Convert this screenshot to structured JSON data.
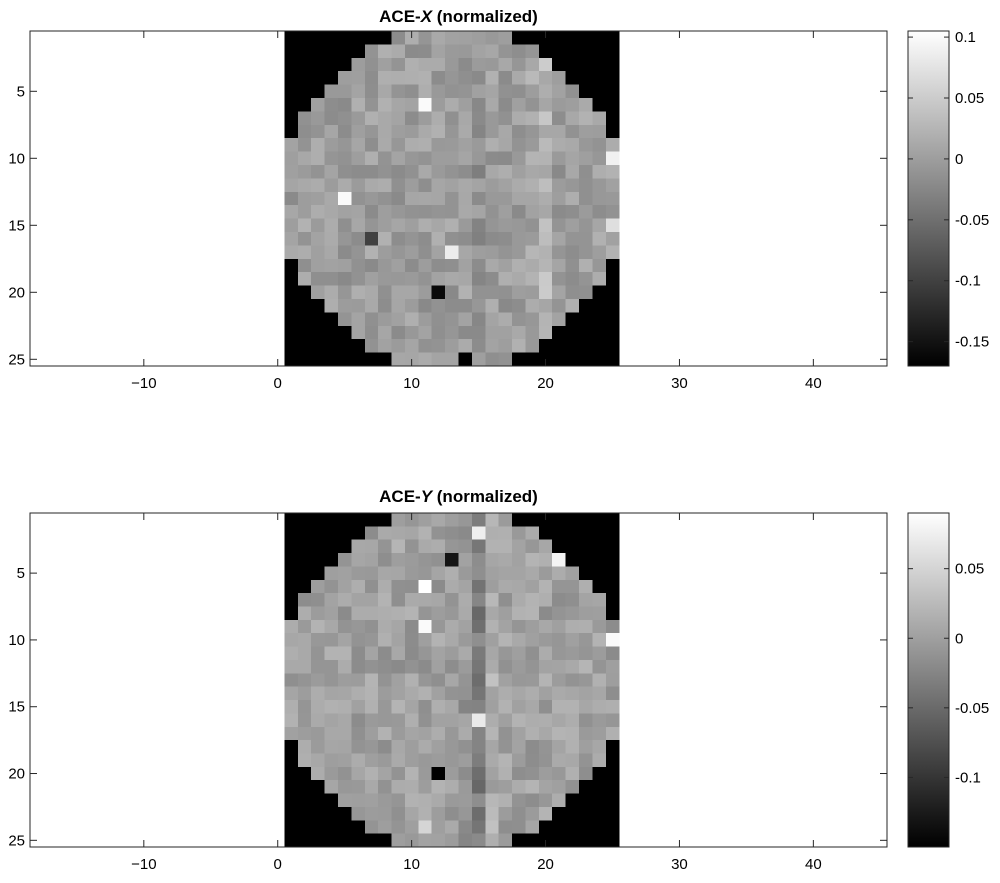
{
  "chart_data": [
    {
      "type": "heatmap",
      "title_parts": {
        "prefix": "ACE-",
        "variable": "X",
        "suffix": " (normalized)"
      },
      "colormap": "gray",
      "xlim": [
        -18.5,
        45.5
      ],
      "ylim": [
        0.5,
        25.5
      ],
      "y_reversed": true,
      "xticks": [
        -10,
        0,
        10,
        20,
        30,
        40
      ],
      "xtick_labels": [
        "−10",
        "0",
        "10",
        "20",
        "30",
        "40"
      ],
      "yticks": [
        5,
        10,
        15,
        20,
        25
      ],
      "ytick_labels": [
        "5",
        "10",
        "15",
        "20",
        "25"
      ],
      "clim": [
        -0.17,
        0.105
      ],
      "colorbar_ticks": [
        0.1,
        0.05,
        0,
        -0.05,
        -0.1,
        -0.15
      ],
      "colorbar_tick_labels": [
        "0.1",
        "0.05",
        "0",
        "-0.05",
        "-0.1",
        "-0.15"
      ],
      "grid_size": [
        25,
        25
      ],
      "background_value": -0.17,
      "base_value": 0.0,
      "noise_amplitude": 0.022,
      "column_offsets": {
        "20": 0.03,
        "19": 0.008,
        "15": -0.012
      },
      "highlights": [
        {
          "x": 11,
          "y": 6,
          "value": 0.1
        },
        {
          "x": 5,
          "y": 13,
          "value": 0.1
        },
        {
          "x": 13,
          "y": 17,
          "value": 0.085
        },
        {
          "x": 25,
          "y": 10,
          "value": 0.09
        },
        {
          "x": 25,
          "y": 15,
          "value": 0.07
        },
        {
          "x": 7,
          "y": 16,
          "value": -0.1
        },
        {
          "x": 12,
          "y": 20,
          "value": -0.16
        },
        {
          "x": 14,
          "y": 25,
          "value": -0.17
        }
      ],
      "seed": 1729
    },
    {
      "type": "heatmap",
      "title_parts": {
        "prefix": "ACE-",
        "variable": "Y",
        "suffix": " (normalized)"
      },
      "colormap": "gray",
      "xlim": [
        -18.5,
        45.5
      ],
      "ylim": [
        0.5,
        25.5
      ],
      "y_reversed": true,
      "xticks": [
        -10,
        0,
        10,
        20,
        30,
        40
      ],
      "xtick_labels": [
        "−10",
        "0",
        "10",
        "20",
        "30",
        "40"
      ],
      "yticks": [
        5,
        10,
        15,
        20,
        25
      ],
      "ytick_labels": [
        "5",
        "10",
        "15",
        "20",
        "25"
      ],
      "clim": [
        -0.15,
        0.09
      ],
      "colorbar_ticks": [
        0.05,
        0,
        -0.05,
        -0.1
      ],
      "colorbar_tick_labels": [
        "0.05",
        "0",
        "-0.05",
        "-0.1"
      ],
      "grid_size": [
        25,
        25
      ],
      "background_value": -0.15,
      "base_value": 0.0,
      "noise_amplitude": 0.02,
      "column_offsets": {
        "15": -0.035,
        "16": 0.015,
        "14": -0.008
      },
      "highlights": [
        {
          "x": 11,
          "y": 6,
          "value": 0.09
        },
        {
          "x": 11,
          "y": 9,
          "value": 0.085
        },
        {
          "x": 21,
          "y": 4,
          "value": 0.08
        },
        {
          "x": 15,
          "y": 2,
          "value": 0.075
        },
        {
          "x": 15,
          "y": 16,
          "value": 0.07
        },
        {
          "x": 25,
          "y": 10,
          "value": 0.085
        },
        {
          "x": 13,
          "y": 4,
          "value": -0.13
        },
        {
          "x": 12,
          "y": 20,
          "value": -0.15
        },
        {
          "x": 11,
          "y": 24,
          "value": 0.05
        }
      ],
      "seed": 4242
    }
  ]
}
